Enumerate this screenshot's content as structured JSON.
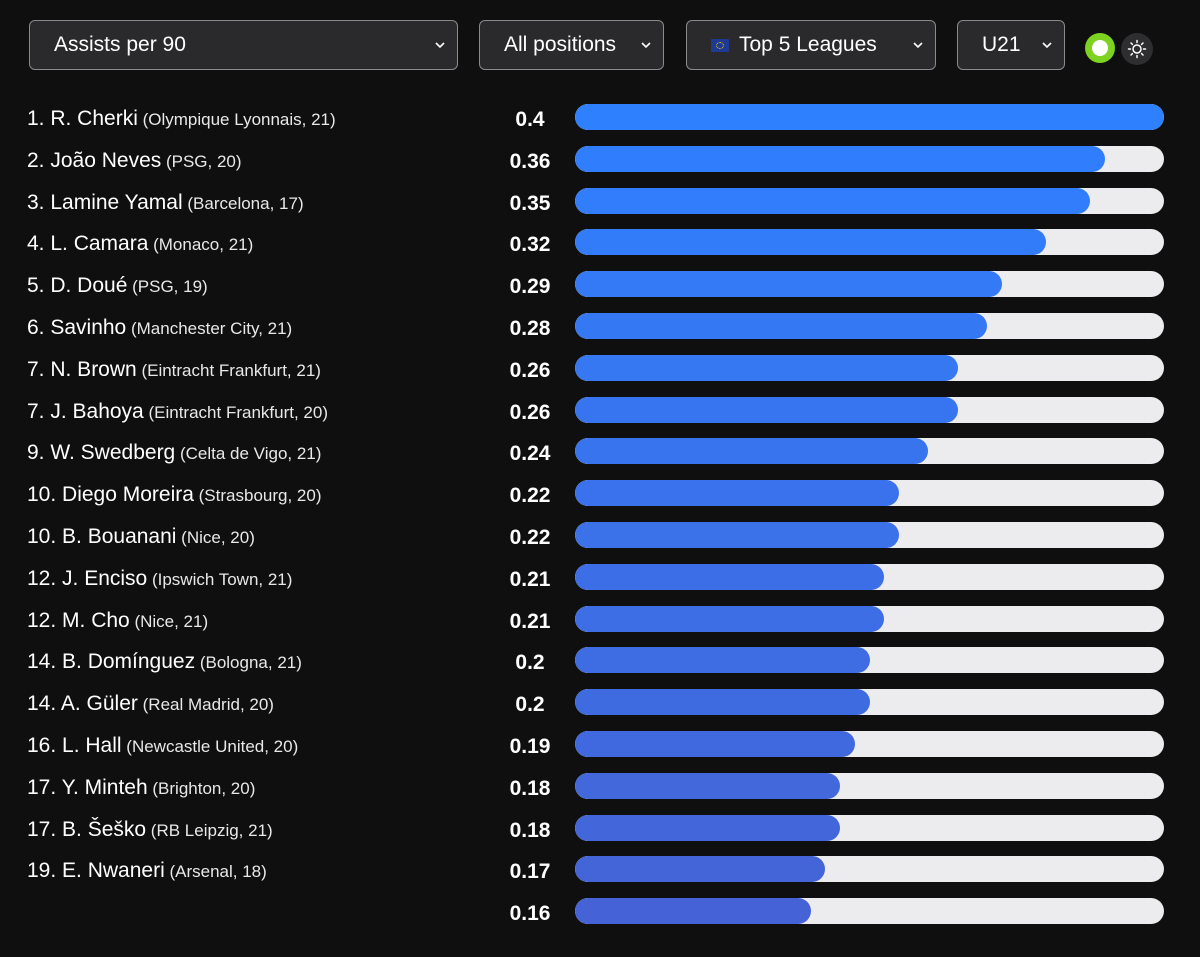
{
  "filters": {
    "stat": "Assists per 90",
    "position": "All positions",
    "league": "Top 5 Leagues",
    "age": "U21"
  },
  "controls": {
    "toggle_on": true,
    "theme_icon": "sun-icon",
    "toggle_color": "#7ed321"
  },
  "chart_data": {
    "type": "bar",
    "orientation": "horizontal",
    "xlim": [
      0,
      0.4
    ],
    "grid": false,
    "bar_colors": {
      "top": "#2f80ff",
      "bottom": "#4563d6",
      "track": "#ececef"
    },
    "rows": [
      {
        "rank": "1.",
        "name": "R. Cherki",
        "meta": "(Olympique Lyonnais, 21)",
        "value": 0.4,
        "display": "0.4"
      },
      {
        "rank": "2.",
        "name": "João Neves",
        "meta": "(PSG, 20)",
        "value": 0.36,
        "display": "0.36"
      },
      {
        "rank": "3.",
        "name": "Lamine Yamal",
        "meta": "(Barcelona, 17)",
        "value": 0.35,
        "display": "0.35"
      },
      {
        "rank": "4.",
        "name": "L. Camara",
        "meta": "(Monaco, 21)",
        "value": 0.32,
        "display": "0.32"
      },
      {
        "rank": "5.",
        "name": "D. Doué",
        "meta": "(PSG, 19)",
        "value": 0.29,
        "display": "0.29"
      },
      {
        "rank": "6.",
        "name": "Savinho",
        "meta": "(Manchester City, 21)",
        "value": 0.28,
        "display": "0.28"
      },
      {
        "rank": "7.",
        "name": "N. Brown",
        "meta": "(Eintracht Frankfurt, 21)",
        "value": 0.26,
        "display": "0.26"
      },
      {
        "rank": "7.",
        "name": "J. Bahoya",
        "meta": "(Eintracht Frankfurt, 20)",
        "value": 0.26,
        "display": "0.26"
      },
      {
        "rank": "9.",
        "name": "W. Swedberg",
        "meta": "(Celta de Vigo, 21)",
        "value": 0.24,
        "display": "0.24"
      },
      {
        "rank": "10.",
        "name": "Diego Moreira",
        "meta": "(Strasbourg, 20)",
        "value": 0.22,
        "display": "0.22"
      },
      {
        "rank": "10.",
        "name": "B. Bouanani",
        "meta": "(Nice, 20)",
        "value": 0.22,
        "display": "0.22"
      },
      {
        "rank": "12.",
        "name": "J. Enciso",
        "meta": "(Ipswich Town, 21)",
        "value": 0.21,
        "display": "0.21"
      },
      {
        "rank": "12.",
        "name": "M. Cho",
        "meta": "(Nice, 21)",
        "value": 0.21,
        "display": "0.21"
      },
      {
        "rank": "14.",
        "name": "B. Domínguez",
        "meta": "(Bologna, 21)",
        "value": 0.2,
        "display": "0.2"
      },
      {
        "rank": "14.",
        "name": "A. Güler",
        "meta": "(Real Madrid, 20)",
        "value": 0.2,
        "display": "0.2"
      },
      {
        "rank": "16.",
        "name": "L. Hall",
        "meta": "(Newcastle United, 20)",
        "value": 0.19,
        "display": "0.19"
      },
      {
        "rank": "17.",
        "name": "Y. Minteh",
        "meta": "(Brighton, 20)",
        "value": 0.18,
        "display": "0.18"
      },
      {
        "rank": "17.",
        "name": "B. Šeško",
        "meta": "(RB Leipzig, 21)",
        "value": 0.18,
        "display": "0.18"
      },
      {
        "rank": "19.",
        "name": "E. Nwaneri",
        "meta": "(Arsenal, 18)",
        "value": 0.17,
        "display": "0.17"
      },
      {
        "rank": "",
        "name": "",
        "meta": "",
        "value": 0.16,
        "display": "0.16"
      }
    ]
  }
}
